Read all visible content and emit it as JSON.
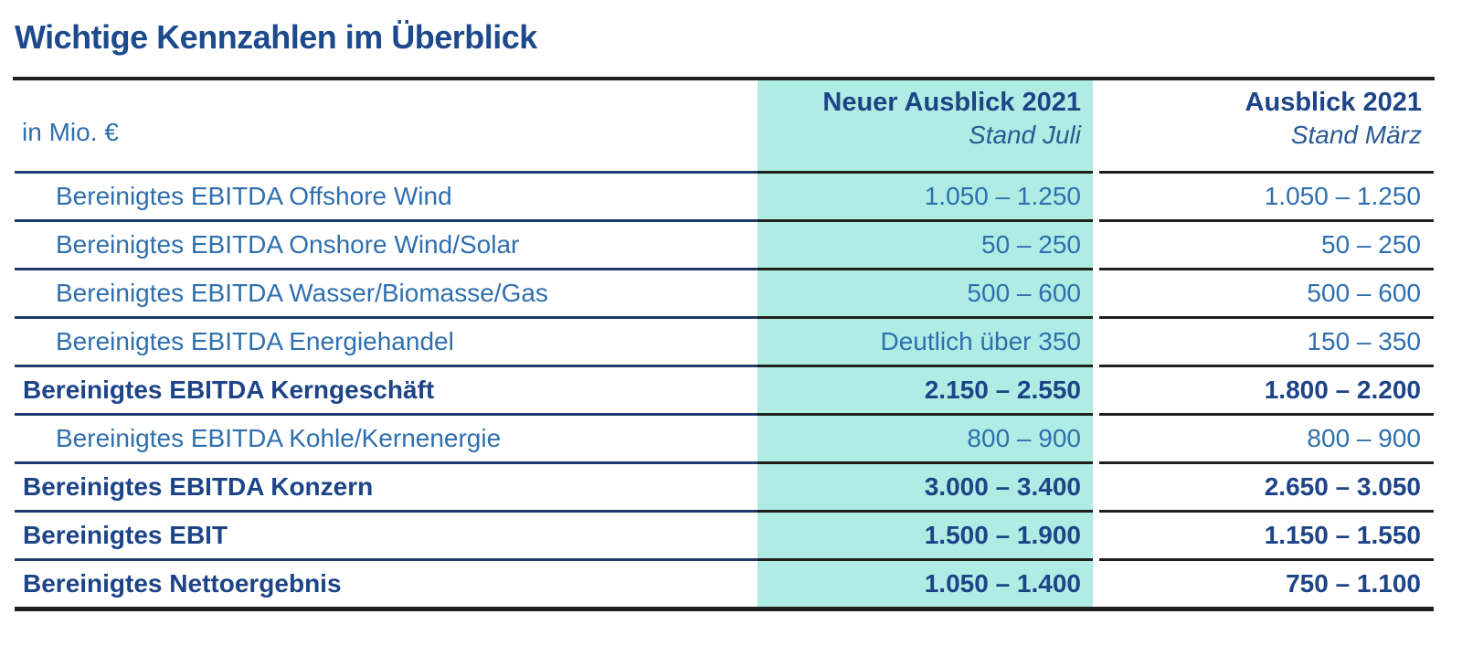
{
  "page": {
    "title": "Wichtige Kennzahlen im Überblick",
    "unit_label": "in Mio. €"
  },
  "table": {
    "columns": [
      {
        "title": "Neuer Ausblick 2021",
        "subtitle": "Stand Juli",
        "highlighted": true
      },
      {
        "title": "Ausblick 2021",
        "subtitle": "Stand März",
        "highlighted": false
      }
    ],
    "rows": [
      {
        "label": "Bereinigtes EBITDA Offshore Wind",
        "new_outlook": "1.050 – 1.250",
        "old_outlook": "1.050 – 1.250",
        "emphasis": false,
        "indent": true
      },
      {
        "label": "Bereinigtes EBITDA Onshore Wind/Solar",
        "new_outlook": "50 – 250",
        "old_outlook": "50 – 250",
        "emphasis": false,
        "indent": true
      },
      {
        "label": "Bereinigtes EBITDA Wasser/Biomasse/Gas",
        "new_outlook": "500 – 600",
        "old_outlook": "500 – 600",
        "emphasis": false,
        "indent": true
      },
      {
        "label": "Bereinigtes EBITDA Energiehandel",
        "new_outlook": "Deutlich über 350",
        "old_outlook": "150 – 350",
        "emphasis": false,
        "indent": true
      },
      {
        "label": "Bereinigtes EBITDA Kerngeschäft",
        "new_outlook": "2.150 – 2.550",
        "old_outlook": "1.800 – 2.200",
        "emphasis": true,
        "indent": false
      },
      {
        "label": "Bereinigtes EBITDA Kohle/Kernenergie",
        "new_outlook": "800 – 900",
        "old_outlook": "800 – 900",
        "emphasis": false,
        "indent": true
      },
      {
        "label": "Bereinigtes EBITDA Konzern",
        "new_outlook": "3.000 – 3.400",
        "old_outlook": "2.650 – 3.050",
        "emphasis": true,
        "indent": false
      },
      {
        "label": "Bereinigtes EBIT",
        "new_outlook": "1.500 – 1.900",
        "old_outlook": "1.150 – 1.550",
        "emphasis": true,
        "indent": false
      },
      {
        "label": "Bereinigtes Nettoergebnis",
        "new_outlook": "1.050 – 1.400",
        "old_outlook": "750 – 1.100",
        "emphasis": true,
        "indent": false
      }
    ]
  },
  "colors": {
    "highlight_teal": "#aeece4",
    "navy_text": "#1c4487",
    "blue_text": "#2f6fae",
    "separator_navy": "#20396e",
    "separator_black": "#1f1f1d"
  }
}
